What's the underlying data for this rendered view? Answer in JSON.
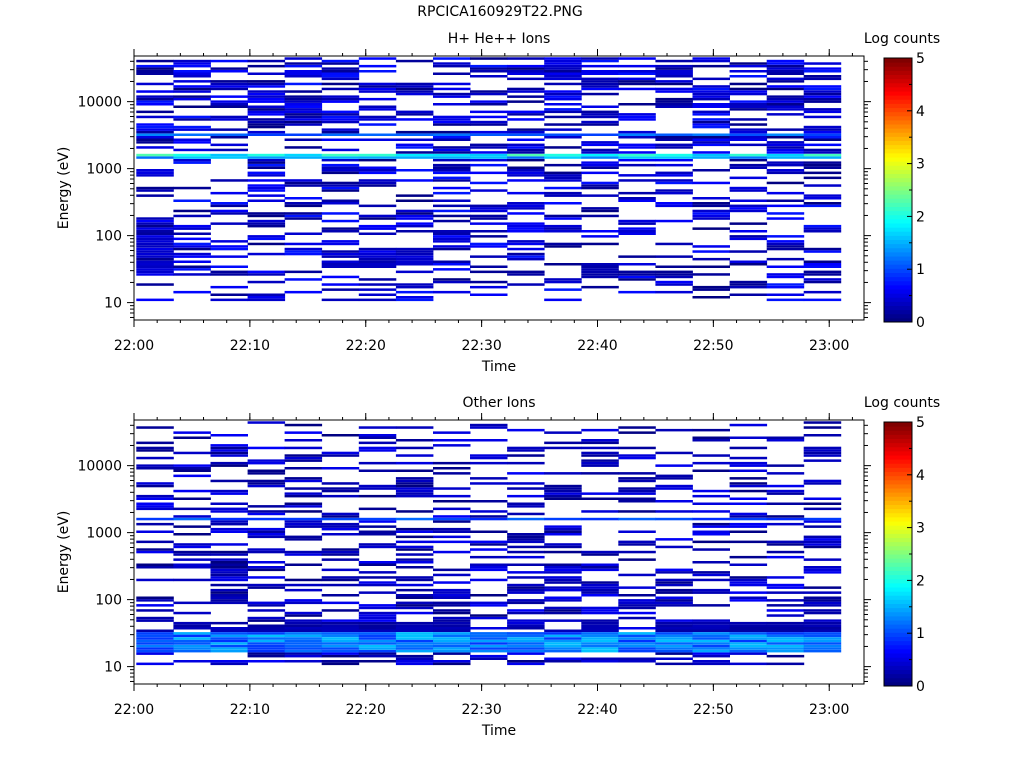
{
  "title": "RPCICA160929T22.PNG",
  "colorbar": {
    "label": "Log counts",
    "ticks": [
      "0",
      "1",
      "2",
      "3",
      "4",
      "5"
    ],
    "range": [
      0,
      5
    ],
    "colormap": "jet"
  },
  "chart_data": [
    {
      "type": "heatmap",
      "title": "H+ He++ Ions",
      "xlabel": "Time",
      "ylabel": "Energy (eV)",
      "yscale": "log",
      "x_tick_labels": [
        "22:00",
        "22:10",
        "22:20",
        "22:30",
        "22:40",
        "22:50",
        "23:00"
      ],
      "y_tick_labels": [
        "10",
        "100",
        "1000",
        "10000"
      ],
      "x_range": [
        "22:00",
        "23:03"
      ],
      "y_range": [
        5.5,
        48000
      ],
      "time_bins": 19,
      "energy_bins": 96,
      "seed": 17,
      "bands": [
        {
          "energy_eV": 1600,
          "level": 2.1,
          "width_bins": 1
        },
        {
          "energy_eV": 1500,
          "level": 1.5,
          "width_bins": 1
        },
        {
          "energy_eV": 3100,
          "level": 1.2,
          "width_bins": 1
        }
      ],
      "background": {
        "high_energy_fill": 0.6,
        "low_energy_fill": 0.28,
        "max_level": 0.75
      },
      "low_cells": [
        {
          "t": [
            0
          ],
          "e": [
            10,
            25
          ],
          "level": 0.45
        },
        {
          "t": [
            2,
            4,
            9,
            10,
            13,
            14,
            15,
            18
          ],
          "e": [
            10,
            11
          ],
          "level": 0.15
        },
        {
          "t": [
            5,
            6,
            7
          ],
          "e": [
            13,
            20
          ],
          "level": 0.4
        },
        {
          "t": [
            12
          ],
          "e": [
            10,
            14
          ],
          "level": 0.25
        }
      ]
    },
    {
      "type": "heatmap",
      "title": "Other Ions",
      "xlabel": "Time",
      "ylabel": "Energy (eV)",
      "yscale": "log",
      "x_tick_labels": [
        "22:00",
        "22:10",
        "22:20",
        "22:30",
        "22:40",
        "22:50",
        "23:00"
      ],
      "y_tick_labels": [
        "10",
        "100",
        "1000",
        "10000"
      ],
      "x_range": [
        "22:00",
        "23:03"
      ],
      "y_range": [
        5.5,
        48000
      ],
      "time_bins": 19,
      "energy_bins": 96,
      "seed": 29,
      "bands": [
        {
          "energy_eV": 1550,
          "level": 1.05,
          "width_bins": 1
        }
      ],
      "low_band": {
        "from_eV": 17,
        "to_eV": 31,
        "level_min": 0.85,
        "level_max": 1.6
      },
      "background": {
        "high_energy_fill": 0.3,
        "low_energy_fill": 0.45,
        "max_level": 0.6
      },
      "low_cells": [
        {
          "t": [
            1,
            2,
            3,
            4,
            5,
            6,
            7,
            8,
            10,
            12,
            14,
            15,
            16,
            17,
            18
          ],
          "e": [
            8,
            16
          ],
          "level": 0.25
        }
      ]
    }
  ]
}
